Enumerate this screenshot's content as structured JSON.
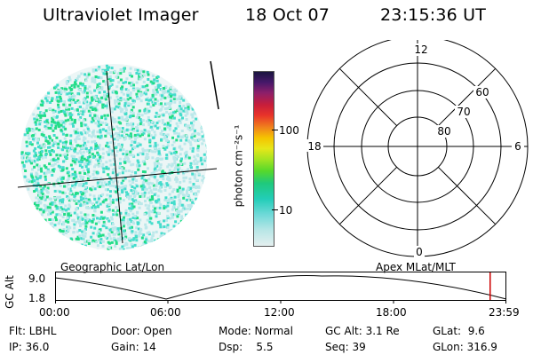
{
  "header": {
    "instrument": "Ultraviolet Imager",
    "date": "18 Oct 07",
    "time": "23:15:36 UT"
  },
  "colorbar": {
    "unit": "photon cm⁻²s⁻¹",
    "ticks": [
      "100",
      "10"
    ]
  },
  "polar": {
    "mlt_labels": {
      "top": "12",
      "left": "18",
      "right": "6",
      "bottom": "0"
    },
    "lat_labels": [
      "60",
      "70",
      "80"
    ]
  },
  "panels": {
    "left_label": "Geographic Lat/Lon",
    "right_label": "Apex MLat/MLT"
  },
  "orbit": {
    "ylabel": "GC Alt",
    "y_top": "9.0",
    "y_bottom": "1.8",
    "x_ticks": [
      "00:00",
      "06:00",
      "12:00",
      "18:00",
      "23:59"
    ],
    "marker_time_fraction": 0.965
  },
  "info": {
    "row1": [
      {
        "label": "Flt: LBHL"
      },
      {
        "label": "Door: Open"
      },
      {
        "label": "Mode: Normal"
      },
      {
        "label": "GC Alt: 3.1 Re"
      },
      {
        "label": "GLat:  9.6"
      }
    ],
    "row2": [
      {
        "label": "IP: 36.0"
      },
      {
        "label": "Gain: 14"
      },
      {
        "label": "Dsp:    5.5"
      },
      {
        "label": "Seq: 39"
      },
      {
        "label": "GLon: 316.9"
      }
    ]
  },
  "colors": {
    "bright": "#22dd88",
    "mid": "#44ddcc",
    "dim": "#bbe8ea",
    "marker": "#cc0000"
  }
}
